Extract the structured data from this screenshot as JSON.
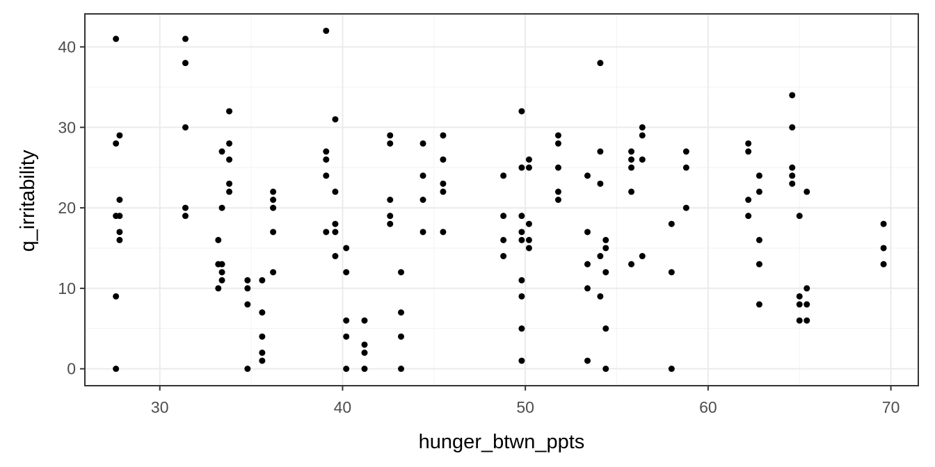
{
  "chart_data": {
    "type": "scatter",
    "title": "",
    "xlabel": "hunger_btwn_ppts",
    "ylabel": "q_irritability",
    "xlim": [
      25.9,
      71.5
    ],
    "ylim": [
      -2.1,
      44.1
    ],
    "x_ticks": [
      30,
      40,
      50,
      60,
      70
    ],
    "y_ticks": [
      0,
      10,
      20,
      30,
      40
    ],
    "grid": true,
    "legend": "none",
    "point_color": "#000000",
    "series": [
      {
        "points": [
          [
            27.6,
            41
          ],
          [
            27.6,
            28
          ],
          [
            27.6,
            19
          ],
          [
            27.6,
            9
          ],
          [
            27.6,
            0
          ],
          [
            27.8,
            29
          ],
          [
            27.8,
            21
          ],
          [
            27.8,
            19
          ],
          [
            27.8,
            17
          ],
          [
            27.8,
            16
          ],
          [
            31.4,
            41
          ],
          [
            31.4,
            38
          ],
          [
            31.4,
            30
          ],
          [
            31.4,
            20
          ],
          [
            31.4,
            19
          ],
          [
            33.2,
            16
          ],
          [
            33.2,
            13
          ],
          [
            33.2,
            10
          ],
          [
            33.4,
            27
          ],
          [
            33.4,
            20
          ],
          [
            33.4,
            13
          ],
          [
            33.4,
            12
          ],
          [
            33.4,
            11
          ],
          [
            33.8,
            32
          ],
          [
            33.8,
            28
          ],
          [
            33.8,
            26
          ],
          [
            33.8,
            23
          ],
          [
            33.8,
            22
          ],
          [
            34.8,
            11
          ],
          [
            34.8,
            10
          ],
          [
            34.8,
            8
          ],
          [
            34.8,
            0
          ],
          [
            35.6,
            11
          ],
          [
            35.6,
            7
          ],
          [
            35.6,
            4
          ],
          [
            35.6,
            2
          ],
          [
            35.6,
            1
          ],
          [
            36.2,
            22
          ],
          [
            36.2,
            21
          ],
          [
            36.2,
            20
          ],
          [
            36.2,
            17
          ],
          [
            36.2,
            12
          ],
          [
            39.1,
            42
          ],
          [
            39.1,
            27
          ],
          [
            39.1,
            26
          ],
          [
            39.1,
            24
          ],
          [
            39.1,
            17
          ],
          [
            39.6,
            31
          ],
          [
            39.6,
            22
          ],
          [
            39.6,
            18
          ],
          [
            39.6,
            17
          ],
          [
            39.6,
            14
          ],
          [
            40.2,
            15
          ],
          [
            40.2,
            12
          ],
          [
            40.2,
            6
          ],
          [
            40.2,
            4
          ],
          [
            40.2,
            0
          ],
          [
            41.2,
            6
          ],
          [
            41.2,
            3
          ],
          [
            41.2,
            2
          ],
          [
            41.2,
            0
          ],
          [
            42.6,
            29
          ],
          [
            42.6,
            28
          ],
          [
            42.6,
            21
          ],
          [
            42.6,
            19
          ],
          [
            42.6,
            18
          ],
          [
            43.2,
            12
          ],
          [
            43.2,
            7
          ],
          [
            43.2,
            4
          ],
          [
            43.2,
            0
          ],
          [
            44.4,
            28
          ],
          [
            44.4,
            24
          ],
          [
            44.4,
            21
          ],
          [
            44.4,
            17
          ],
          [
            45.5,
            29
          ],
          [
            45.5,
            26
          ],
          [
            45.5,
            23
          ],
          [
            45.5,
            22
          ],
          [
            45.5,
            17
          ],
          [
            48.8,
            24
          ],
          [
            48.8,
            19
          ],
          [
            48.8,
            16
          ],
          [
            48.8,
            14
          ],
          [
            49.8,
            32
          ],
          [
            49.8,
            25
          ],
          [
            49.8,
            19
          ],
          [
            49.8,
            17
          ],
          [
            49.8,
            16
          ],
          [
            49.8,
            11
          ],
          [
            49.8,
            9
          ],
          [
            49.8,
            5
          ],
          [
            49.8,
            1
          ],
          [
            50.2,
            26
          ],
          [
            50.2,
            25
          ],
          [
            50.2,
            18
          ],
          [
            50.2,
            16
          ],
          [
            50.2,
            15
          ],
          [
            51.8,
            29
          ],
          [
            51.8,
            28
          ],
          [
            51.8,
            25
          ],
          [
            51.8,
            22
          ],
          [
            51.8,
            21
          ],
          [
            53.4,
            24
          ],
          [
            53.4,
            17
          ],
          [
            53.4,
            13
          ],
          [
            53.4,
            10
          ],
          [
            53.4,
            1
          ],
          [
            54.1,
            38
          ],
          [
            54.1,
            27
          ],
          [
            54.1,
            23
          ],
          [
            54.1,
            14
          ],
          [
            54.1,
            9
          ],
          [
            54.4,
            16
          ],
          [
            54.4,
            15
          ],
          [
            54.4,
            12
          ],
          [
            54.4,
            5
          ],
          [
            54.4,
            0
          ],
          [
            55.8,
            27
          ],
          [
            55.8,
            26
          ],
          [
            55.8,
            25
          ],
          [
            55.8,
            22
          ],
          [
            55.8,
            13
          ],
          [
            56.4,
            30
          ],
          [
            56.4,
            29
          ],
          [
            56.4,
            26
          ],
          [
            56.4,
            14
          ],
          [
            58.0,
            18
          ],
          [
            58.0,
            12
          ],
          [
            58.0,
            0
          ],
          [
            58.8,
            27
          ],
          [
            58.8,
            25
          ],
          [
            58.8,
            20
          ],
          [
            62.2,
            28
          ],
          [
            62.2,
            27
          ],
          [
            62.2,
            21
          ],
          [
            62.2,
            19
          ],
          [
            62.8,
            24
          ],
          [
            62.8,
            22
          ],
          [
            62.8,
            16
          ],
          [
            62.8,
            13
          ],
          [
            62.8,
            8
          ],
          [
            64.6,
            34
          ],
          [
            64.6,
            30
          ],
          [
            64.6,
            25
          ],
          [
            64.6,
            24
          ],
          [
            64.6,
            23
          ],
          [
            65.0,
            19
          ],
          [
            65.0,
            9
          ],
          [
            65.0,
            8
          ],
          [
            65.0,
            6
          ],
          [
            65.4,
            22
          ],
          [
            65.4,
            10
          ],
          [
            65.4,
            8
          ],
          [
            65.4,
            6
          ],
          [
            69.6,
            18
          ],
          [
            69.6,
            15
          ],
          [
            69.6,
            13
          ]
        ]
      }
    ]
  }
}
